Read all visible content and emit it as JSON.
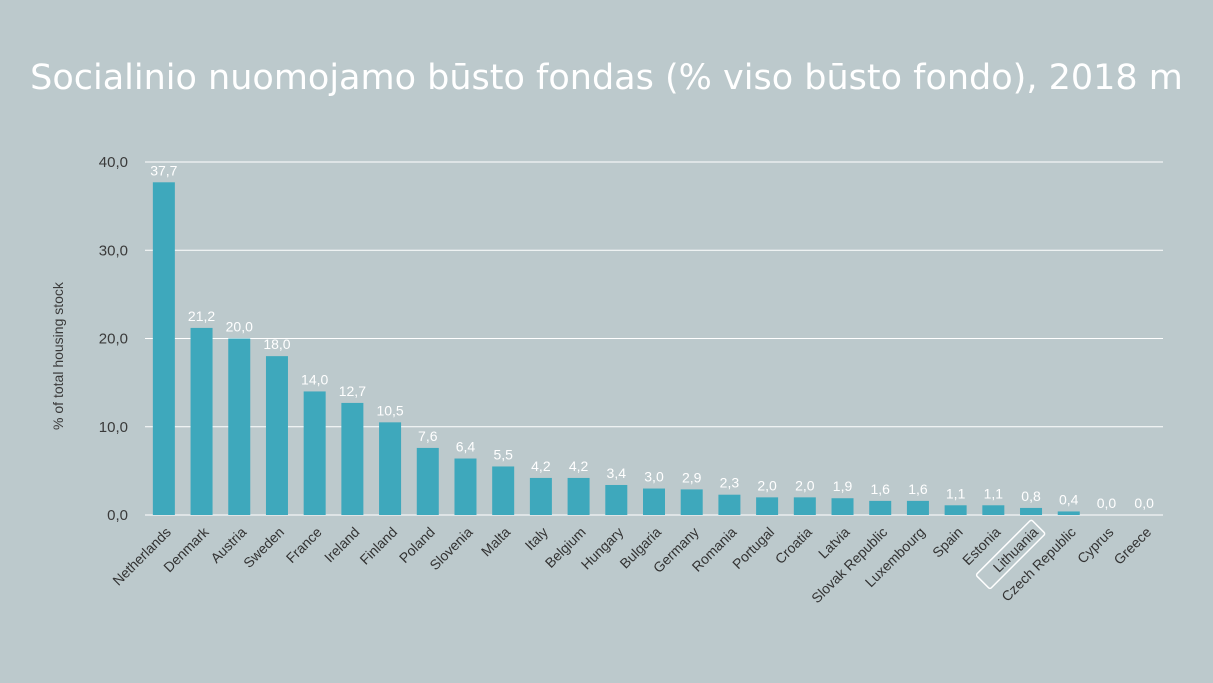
{
  "chart_data": {
    "type": "bar",
    "title": "Socialinio nuomojamo būsto fondas (% viso būsto fondo), 2018 m",
    "xlabel": "",
    "ylabel": "% of total housing stock",
    "ylim": [
      0,
      40
    ],
    "yticks": [
      "0,0",
      "10,0",
      "20,0",
      "30,0",
      "40,0"
    ],
    "grid": true,
    "categories": [
      "Netherlands",
      "Denmark",
      "Austria",
      "Sweden",
      "France",
      "Ireland",
      "Finland",
      "Poland",
      "Slovenia",
      "Malta",
      "Italy",
      "Belgium",
      "Hungary",
      "Bulgaria",
      "Germany",
      "Romania",
      "Portugal",
      "Croatia",
      "Latvia",
      "Slovak Republic",
      "Luxembourg",
      "Spain",
      "Estonia",
      "Lithuania",
      "Czech Republic",
      "Cyprus",
      "Greece"
    ],
    "values": [
      37.7,
      21.2,
      20.0,
      18.0,
      14.0,
      12.7,
      10.5,
      7.6,
      6.4,
      5.5,
      4.2,
      4.2,
      3.4,
      3.0,
      2.9,
      2.3,
      2.0,
      2.0,
      1.9,
      1.6,
      1.6,
      1.1,
      1.1,
      0.8,
      0.4,
      0.0,
      0.0
    ],
    "value_labels": [
      "37,7",
      "21,2",
      "20,0",
      "18,0",
      "14,0",
      "12,7",
      "10,5",
      "7,6",
      "6,4",
      "5,5",
      "4,2",
      "4,2",
      "3,4",
      "3,0",
      "2,9",
      "2,3",
      "2,0",
      "2,0",
      "1,9",
      "1,6",
      "1,6",
      "1,1",
      "1,1",
      "0,8",
      "0,4",
      "0,0",
      "0,0"
    ],
    "highlighted_category": "Lithuania",
    "colors": {
      "bar": "#3ea8bc",
      "background": "#bcc9cc",
      "grid": "#ffffff",
      "title": "#ffffff"
    }
  }
}
